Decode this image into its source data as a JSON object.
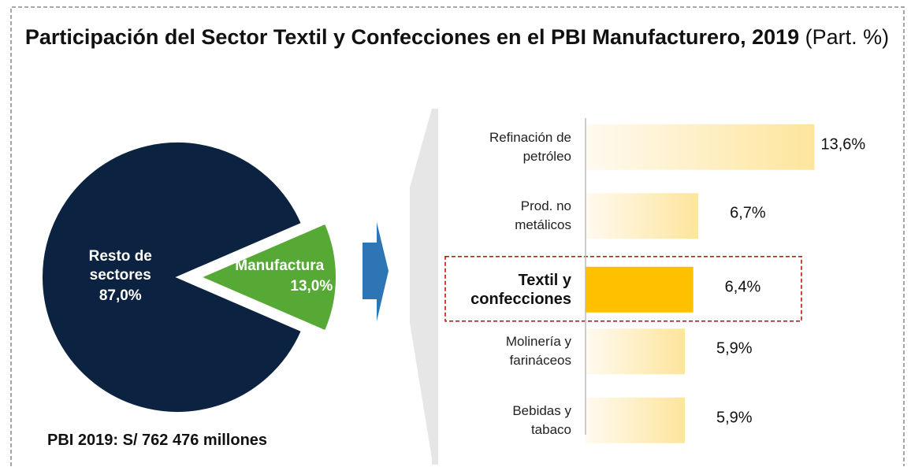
{
  "title": "Participación del Sector Textil y Confecciones en el PBI Manufacturero, 2019",
  "subtitle": "(Part. %)",
  "chart_data": [
    {
      "type": "pie",
      "categories": [
        "Resto de sectores",
        "Manufactura"
      ],
      "values": [
        87.0,
        13.0
      ],
      "value_labels": [
        "87,0%",
        "13,0%"
      ],
      "colors": [
        "#0b2240",
        "#55a934"
      ],
      "note": "PBI 2019: S/ 762 476 millones"
    },
    {
      "type": "bar",
      "orientation": "horizontal",
      "categories": [
        "Refinación de petróleo",
        "Prod. no metálicos",
        "Textil y confecciones",
        "Molinería y farináceos",
        "Bebidas y tabaco"
      ],
      "values": [
        13.6,
        6.7,
        6.4,
        5.9,
        5.9
      ],
      "value_labels": [
        "13,6%",
        "6,7%",
        "6,4%",
        "5,9%",
        "5,9%"
      ],
      "color": "#fde59c",
      "highlight": 2,
      "highlight_color": "#ffc000",
      "xlim": [
        0,
        14
      ]
    }
  ]
}
